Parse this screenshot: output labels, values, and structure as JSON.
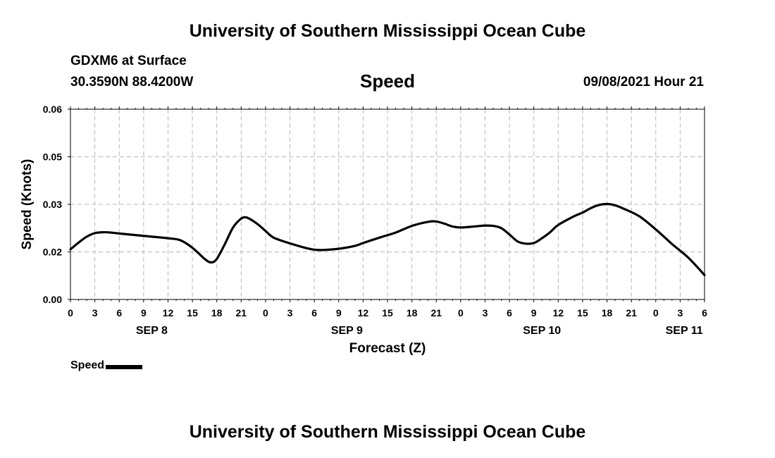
{
  "header": {
    "title": "University of Southern Mississippi Ocean Cube",
    "station": "GDXM6 at Surface",
    "coords": "30.3590N  88.4200W",
    "variable": "Speed",
    "datetime": "09/08/2021 Hour 21"
  },
  "footer": {
    "title": "University of Southern Mississippi Ocean Cube"
  },
  "chart_data": {
    "type": "line",
    "title": "Speed",
    "xlabel": "Forecast (Z)",
    "ylabel": "Speed (Knots)",
    "ylim": [
      0,
      0.06
    ],
    "xlim": [
      0,
      78
    ],
    "x_unit": "hours since SEP 8 00Z",
    "grid": true,
    "yticks": [
      {
        "value": 0.0,
        "label": "0.00"
      },
      {
        "value": 0.015,
        "label": "0.02"
      },
      {
        "value": 0.03,
        "label": "0.03"
      },
      {
        "value": 0.045,
        "label": "0.05"
      },
      {
        "value": 0.06,
        "label": "0.06"
      }
    ],
    "xticks": [
      "0",
      "3",
      "6",
      "9",
      "12",
      "15",
      "18",
      "21",
      "0",
      "3",
      "6",
      "9",
      "12",
      "15",
      "18",
      "21",
      "0",
      "3",
      "6",
      "9",
      "12",
      "15",
      "18",
      "21",
      "0",
      "3",
      "6"
    ],
    "date_labels": [
      {
        "hour": 10,
        "label": "SEP 8"
      },
      {
        "hour": 34,
        "label": "SEP 9"
      },
      {
        "hour": 58,
        "label": "SEP 10"
      },
      {
        "hour": 75.5,
        "label": "SEP 11"
      }
    ],
    "series": [
      {
        "name": "Speed",
        "color": "#000000",
        "x": [
          0,
          1,
          2,
          3,
          4,
          5,
          6,
          8,
          10,
          12,
          13.5,
          15,
          16.5,
          17.3,
          18,
          19,
          20,
          21,
          21.5,
          22,
          23,
          24,
          25,
          27,
          29,
          30,
          31,
          33,
          35,
          36,
          38,
          40,
          42,
          44,
          45,
          46,
          47,
          48,
          50,
          51,
          52,
          53,
          54,
          55,
          56,
          57,
          58,
          59,
          60,
          62,
          63,
          64,
          65,
          66,
          67,
          68,
          70,
          72,
          74,
          76,
          78
        ],
        "y": [
          0.0158,
          0.0179,
          0.0198,
          0.0209,
          0.0212,
          0.0211,
          0.0208,
          0.0203,
          0.0198,
          0.0193,
          0.0187,
          0.0163,
          0.0128,
          0.0117,
          0.0128,
          0.0175,
          0.0227,
          0.0255,
          0.0259,
          0.0255,
          0.0238,
          0.0216,
          0.0195,
          0.0177,
          0.0162,
          0.0157,
          0.0156,
          0.016,
          0.0169,
          0.0178,
          0.0195,
          0.0211,
          0.0232,
          0.0245,
          0.0246,
          0.0239,
          0.023,
          0.0227,
          0.0231,
          0.0233,
          0.0232,
          0.0225,
          0.0205,
          0.0183,
          0.0176,
          0.0178,
          0.0193,
          0.0212,
          0.0235,
          0.0263,
          0.0274,
          0.0288,
          0.0298,
          0.0301,
          0.0297,
          0.0287,
          0.0262,
          0.0221,
          0.0175,
          0.0132,
          0.0077
        ]
      }
    ],
    "legend": {
      "label": "Speed",
      "position": "bottom-left"
    }
  }
}
